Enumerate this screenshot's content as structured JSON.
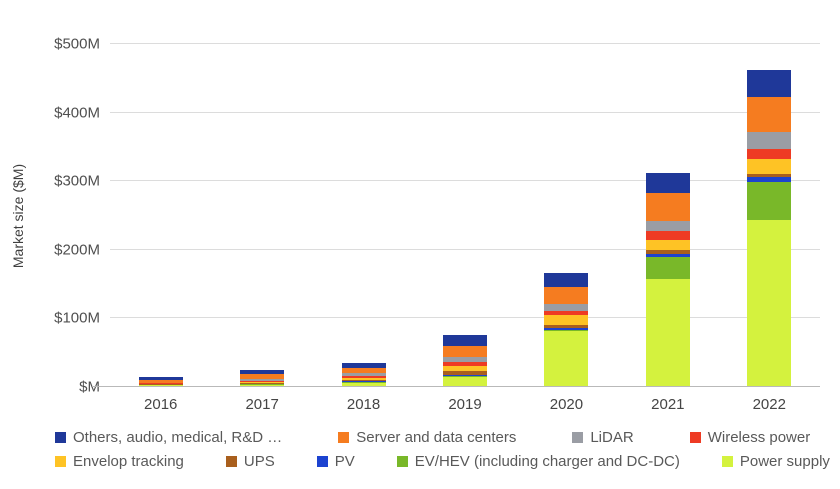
{
  "chart_data": {
    "type": "bar",
    "stacked": true,
    "title": "",
    "xlabel": "",
    "ylabel": "Market size ($M)",
    "ylim": [
      0,
      500
    ],
    "grid": true,
    "legend_position": "bottom",
    "categories": [
      "2016",
      "2017",
      "2018",
      "2019",
      "2020",
      "2021",
      "2022"
    ],
    "y_ticks": [
      "$M",
      "$100M",
      "$200M",
      "$300M",
      "$400M",
      "$500M"
    ],
    "y_tick_values": [
      0,
      100,
      200,
      300,
      400,
      500
    ],
    "totals": [
      14,
      23,
      34,
      74,
      165,
      310,
      461
    ],
    "series": [
      {
        "name": "Others, audio, medical, R&D …",
        "color": "#1f3899",
        "values": [
          4.5,
          6,
          7,
          15,
          21,
          29,
          39
        ]
      },
      {
        "name": "Server and data centers",
        "color": "#f57c20",
        "values": [
          4.5,
          6,
          8,
          17,
          24,
          41,
          52
        ]
      },
      {
        "name": "LiDAR",
        "color": "#9a9da4",
        "values": [
          1,
          3,
          4,
          7,
          11,
          14,
          24
        ]
      },
      {
        "name": "Wireless power",
        "color": "#ee3b24",
        "values": [
          1,
          2,
          3,
          6,
          6,
          13,
          15
        ]
      },
      {
        "name": "Envelop tracking",
        "color": "#fec325",
        "values": [
          0.5,
          1.5,
          3,
          7,
          14,
          15,
          22
        ]
      },
      {
        "name": "UPS",
        "color": "#a95f1d",
        "values": [
          0.5,
          1,
          2,
          6,
          5,
          5,
          5
        ]
      },
      {
        "name": "PV",
        "color": "#1c43d0",
        "values": [
          0.5,
          1,
          1,
          1.5,
          2,
          5,
          6
        ]
      },
      {
        "name": "EV/HEV (including charger and DC-DC)",
        "color": "#79b829",
        "values": [
          0.5,
          0.5,
          1,
          1.5,
          2,
          32,
          56
        ]
      },
      {
        "name": "Power supply",
        "color": "#d4f23e",
        "values": [
          1,
          2,
          5,
          13,
          80,
          156,
          242
        ]
      }
    ],
    "legend_rows": [
      [
        0,
        1,
        2,
        3
      ],
      [
        4,
        5,
        6,
        7,
        8
      ]
    ]
  }
}
